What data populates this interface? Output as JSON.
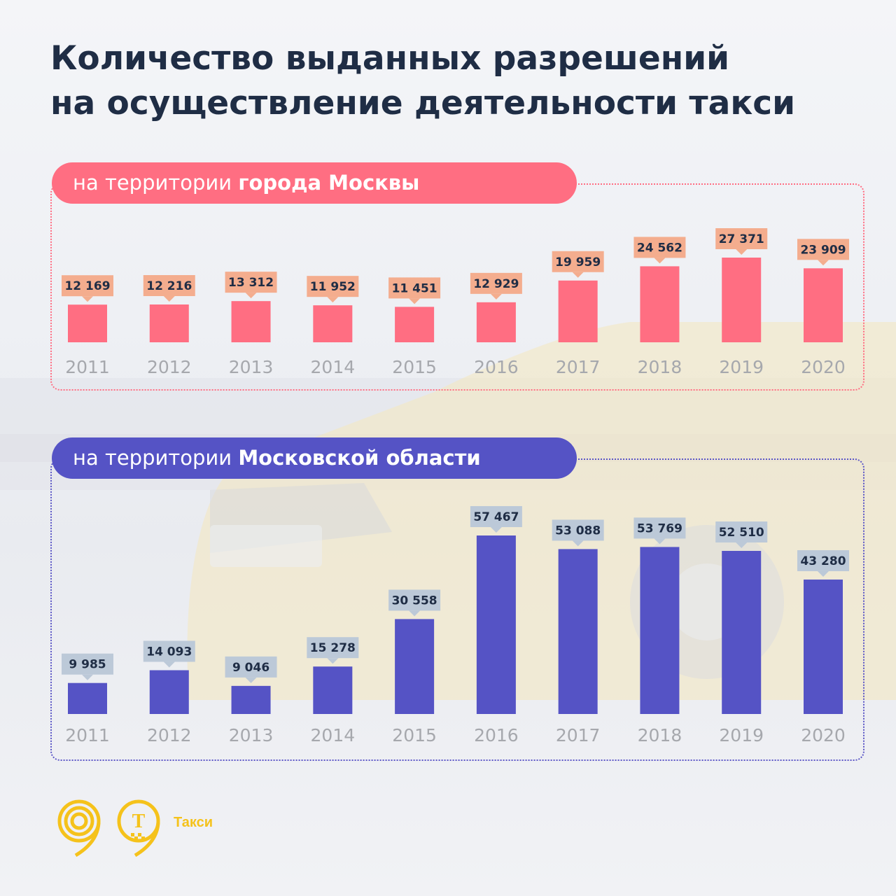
{
  "title": {
    "line1": "Количество выданных разрешений",
    "line2": "на осуществление деятельности такси"
  },
  "colors": {
    "title": "#1f2d45",
    "city_bar": "#ff6e82",
    "city_label_bg": "#f4ad8e",
    "region_bar": "#5553c5",
    "region_label_bg": "#bcc9d8",
    "tick": "#a6a8ad",
    "brand_yellow": "#f5c21b"
  },
  "sections": {
    "city": {
      "prefix": "на территории ",
      "bold": "города Москвы"
    },
    "region": {
      "prefix": "на территории ",
      "bold": "Московской области"
    }
  },
  "chart_data": [
    {
      "type": "bar",
      "categories": [
        "2011",
        "2012",
        "2013",
        "2014",
        "2015",
        "2016",
        "2017",
        "2018",
        "2019",
        "2020"
      ],
      "values": [
        12169,
        12216,
        13312,
        11952,
        11451,
        12929,
        19959,
        24562,
        27371,
        23909
      ],
      "data_labels": [
        "12 169",
        "12 216",
        "13 312",
        "11 952",
        "11 451",
        "12 929",
        "19 959",
        "24 562",
        "27 371",
        "23 909"
      ],
      "title": "на территории города Москвы",
      "xlabel": "",
      "ylabel": "",
      "grid": false,
      "legend": "none"
    },
    {
      "type": "bar",
      "categories": [
        "2011",
        "2012",
        "2013",
        "2014",
        "2015",
        "2016",
        "2017",
        "2018",
        "2019",
        "2020"
      ],
      "values": [
        9985,
        14093,
        9046,
        15278,
        30558,
        57467,
        53088,
        53769,
        52510,
        43280
      ],
      "data_labels": [
        "9 985",
        "14 093",
        "9 046",
        "15 278",
        "30 558",
        "57 467",
        "53 088",
        "53 769",
        "52 510",
        "43 280"
      ],
      "title": "на территории Московской области",
      "xlabel": "",
      "ylabel": "",
      "grid": false,
      "legend": "none"
    }
  ],
  "brand": {
    "taxi_label": "Такси",
    "taxi_logo_letter": "Т"
  }
}
